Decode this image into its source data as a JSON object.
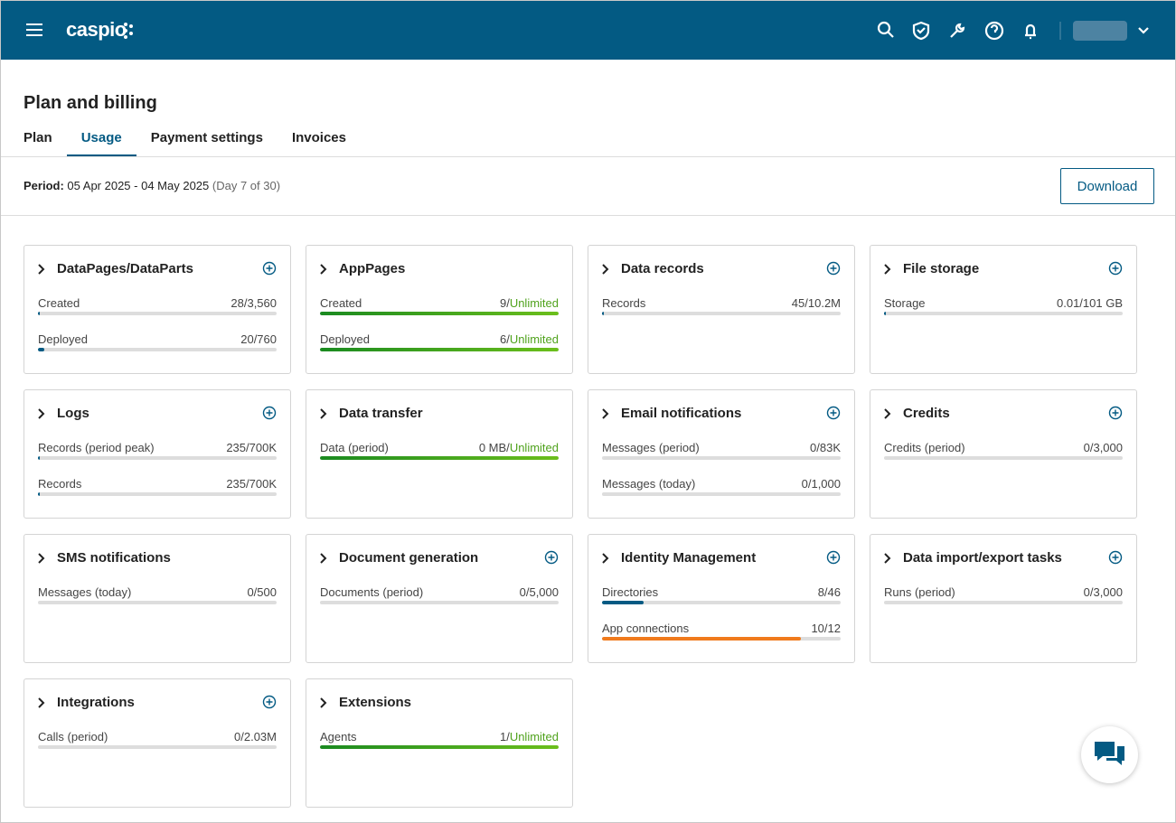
{
  "header": {
    "logo": "caspio"
  },
  "page": {
    "title": "Plan and billing",
    "tabs": [
      {
        "label": "Plan",
        "active": false
      },
      {
        "label": "Usage",
        "active": true
      },
      {
        "label": "Payment settings",
        "active": false
      },
      {
        "label": "Invoices",
        "active": false
      }
    ],
    "period": {
      "label": "Period:",
      "range": "05 Apr 2025 - 04 May 2025",
      "day": "(Day 7 of 30)"
    },
    "download": "Download"
  },
  "cards": [
    {
      "title": "DataPages/DataParts",
      "add": true,
      "rows": [
        {
          "label": "Created",
          "value": 28,
          "max": 3560,
          "value_label": "28/3,560"
        },
        {
          "label": "Deployed",
          "value": 20,
          "max": 760,
          "value_label": "20/760"
        }
      ]
    },
    {
      "title": "AppPages",
      "add": false,
      "rows": [
        {
          "label": "Created",
          "value_label": "9/",
          "limit_label": "Unlimited"
        },
        {
          "label": "Deployed",
          "value_label": "6/",
          "limit_label": "Unlimited"
        }
      ]
    },
    {
      "title": "Data records",
      "add": true,
      "rows": [
        {
          "label": "Records",
          "value": 45,
          "max": 10200000,
          "value_label": "45/10.2M"
        }
      ]
    },
    {
      "title": "File storage",
      "add": true,
      "rows": [
        {
          "label": "Storage",
          "value": 0.01,
          "max": 101,
          "value_label": "0.01/101 GB"
        }
      ]
    },
    {
      "title": "Logs",
      "add": true,
      "rows": [
        {
          "label": "Records (period peak)",
          "value": 235,
          "max": 700000,
          "value_label": "235/700K"
        },
        {
          "label": "Records",
          "value": 235,
          "max": 700000,
          "value_label": "235/700K"
        }
      ]
    },
    {
      "title": "Data transfer",
      "add": false,
      "rows": [
        {
          "label": "Data (period)",
          "value_label": "0 MB/",
          "limit_label": "Unlimited"
        }
      ]
    },
    {
      "title": "Email notifications",
      "add": true,
      "rows": [
        {
          "label": "Messages (period)",
          "value": 0,
          "max": 83000,
          "value_label": "0/83K"
        },
        {
          "label": "Messages (today)",
          "value": 0,
          "max": 1000,
          "value_label": "0/1,000"
        }
      ]
    },
    {
      "title": "Credits",
      "add": true,
      "rows": [
        {
          "label": "Credits (period)",
          "value": 0,
          "max": 3000,
          "value_label": "0/3,000"
        }
      ]
    },
    {
      "title": "SMS notifications",
      "add": false,
      "rows": [
        {
          "label": "Messages (today)",
          "value": 0,
          "max": 500,
          "value_label": "0/500"
        }
      ]
    },
    {
      "title": "Document generation",
      "add": true,
      "rows": [
        {
          "label": "Documents (period)",
          "value": 0,
          "max": 5000,
          "value_label": "0/5,000"
        }
      ]
    },
    {
      "title": "Identity Management",
      "add": true,
      "rows": [
        {
          "label": "Directories",
          "value": 8,
          "max": 46,
          "value_label": "8/46"
        },
        {
          "label": "App connections",
          "value": 10,
          "max": 12,
          "value_label": "10/12",
          "warning": true
        }
      ]
    },
    {
      "title": "Data import/export tasks",
      "add": true,
      "rows": [
        {
          "label": "Runs (period)",
          "value": 0,
          "max": 3000,
          "value_label": "0/3,000"
        }
      ]
    },
    {
      "title": "Integrations",
      "add": true,
      "rows": [
        {
          "label": "Calls (period)",
          "value": 0,
          "max": 2030000,
          "value_label": "0/2.03M"
        }
      ]
    },
    {
      "title": "Extensions",
      "add": false,
      "rows": [
        {
          "label": "Agents",
          "value_label": "1/",
          "limit_label": "Unlimited"
        }
      ]
    }
  ]
}
